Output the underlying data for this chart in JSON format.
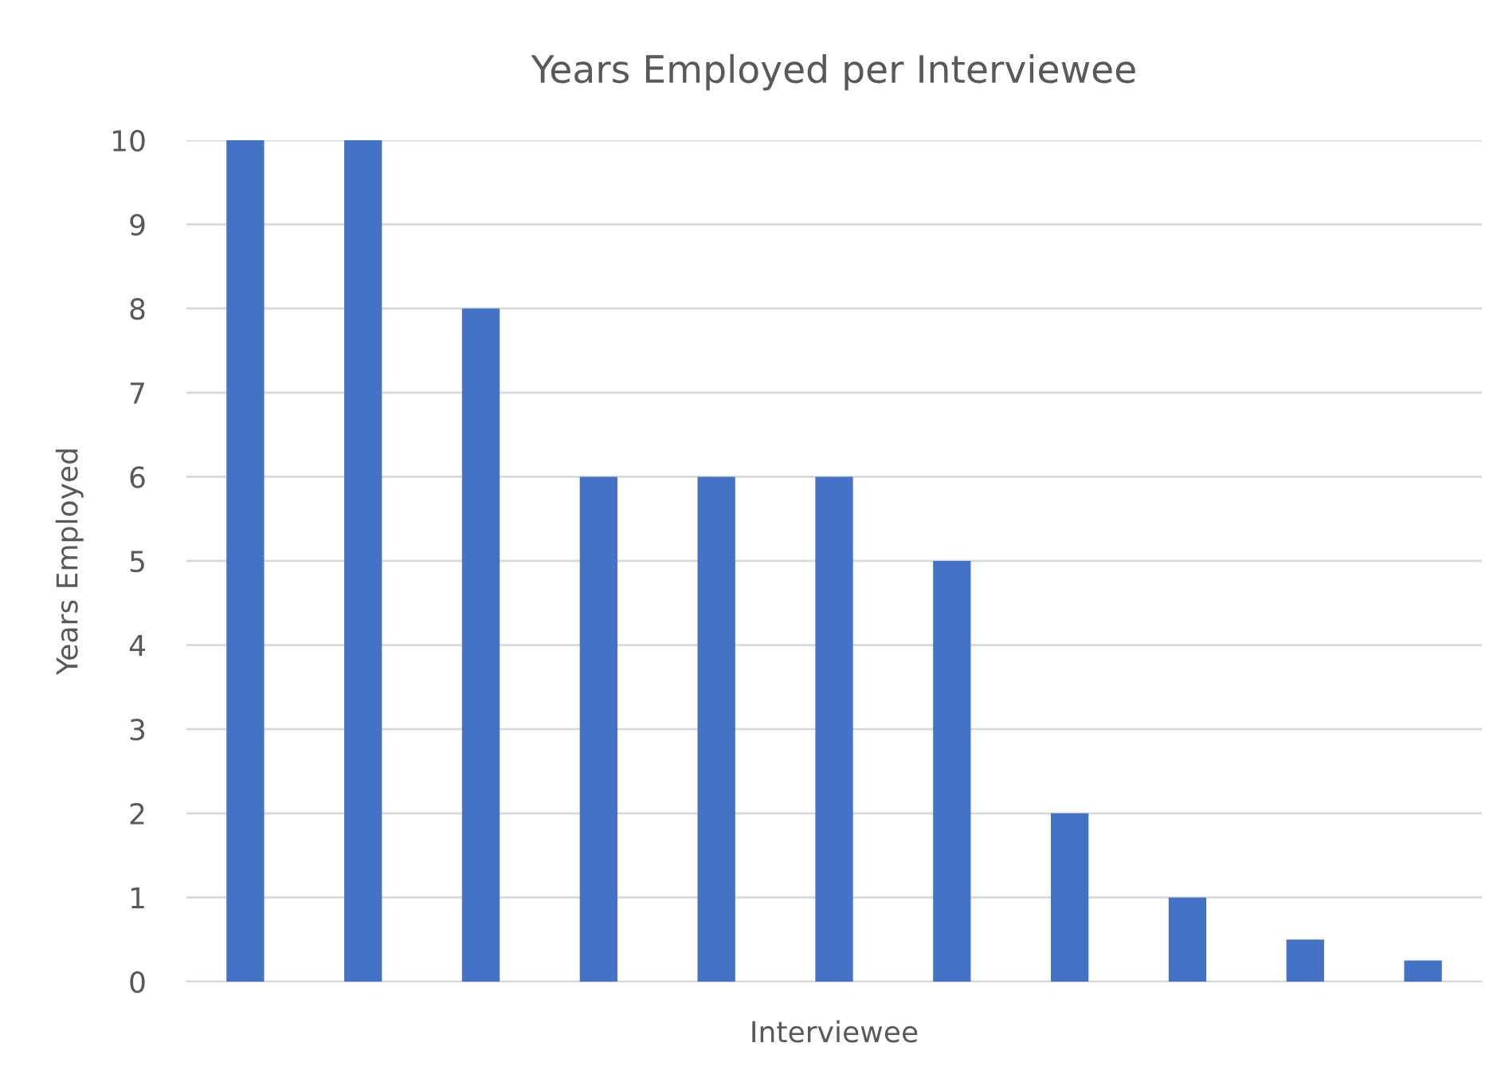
{
  "chart_data": {
    "type": "bar",
    "title": "Years Employed per Interviewee",
    "xlabel": "Interviewee",
    "ylabel": "Years Employed",
    "categories": [
      null,
      null,
      null,
      null,
      null,
      null,
      null,
      null,
      null,
      null,
      null
    ],
    "values": [
      10,
      10,
      8,
      6,
      6,
      6,
      5,
      2,
      1,
      0.5,
      0.25
    ],
    "color": "#4472c4",
    "ylim": [
      0,
      10
    ],
    "yticks": [
      0,
      1,
      2,
      3,
      4,
      5,
      6,
      7,
      8,
      9,
      10
    ],
    "grid": "y"
  }
}
